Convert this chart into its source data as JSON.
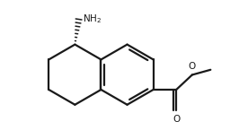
{
  "bg": "#ffffff",
  "lc": "#1a1a1a",
  "lw": 1.6,
  "s": 1.18,
  "bcx": 4.9,
  "bcy": 3.3,
  "inner_off": 0.13,
  "inner_shrink": 0.18,
  "n_dashes": 7,
  "nh2_text": "NH$_2$",
  "xlim": [
    0.2,
    9.0
  ],
  "ylim": [
    0.8,
    6.2
  ]
}
